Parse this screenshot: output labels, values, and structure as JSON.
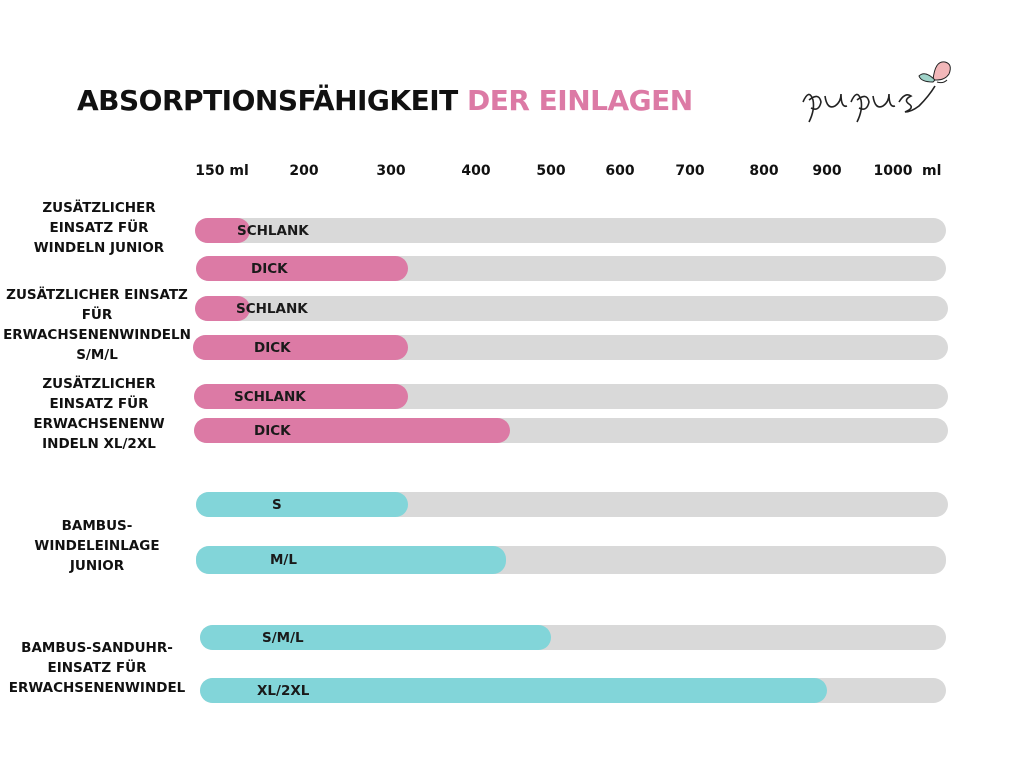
{
  "colors": {
    "accent_pink": "#dc7aa5",
    "accent_teal": "#82d5d9",
    "track_grey": "#d9d9d9",
    "text": "#111111"
  },
  "header": {
    "title_main": "ABSORPTIONSFÄHIGKEIT",
    "title_accent": "DER EINLAGEN",
    "logo_text": "pupus"
  },
  "chart_data": {
    "type": "bar",
    "orientation": "horizontal",
    "title": "ABSORPTIONSFÄHIGKEIT DER EINLAGEN",
    "xlabel": "ml",
    "unit": "ml",
    "xlim": [
      150,
      1000
    ],
    "grid": false,
    "x_ticks": [
      {
        "value": 150,
        "label": "150 ml"
      },
      {
        "value": 200,
        "label": "200"
      },
      {
        "value": 300,
        "label": "300"
      },
      {
        "value": 400,
        "label": "400"
      },
      {
        "value": 500,
        "label": "500"
      },
      {
        "value": 600,
        "label": "600"
      },
      {
        "value": 700,
        "label": "700"
      },
      {
        "value": 800,
        "label": "800"
      },
      {
        "value": 900,
        "label": "900"
      },
      {
        "value": 1000,
        "label": "1000"
      }
    ],
    "unit_label": "ml",
    "groups": [
      {
        "label": "ZUSÄTZLICHER EINSATZ FÜR WINDELN JUNIOR",
        "label_lines": [
          "ZUSÄTZLICHER",
          "EINSATZ FÜR",
          "WINDELN JUNIOR"
        ],
        "color": "pink",
        "bars": [
          {
            "label": "SCHLANK",
            "value": 165
          },
          {
            "label": "DICK",
            "value": 320
          }
        ]
      },
      {
        "label": "ZUSÄTZLICHER EINSATZ FÜR ERWACHSENENWINDELN S/M/L",
        "label_lines": [
          "ZUSÄTZLICHER EINSATZ",
          "FÜR",
          "ERWACHSENENWINDELN",
          "S/M/L"
        ],
        "color": "pink",
        "bars": [
          {
            "label": "SCHLANK",
            "value": 165
          },
          {
            "label": "DICK",
            "value": 320
          }
        ]
      },
      {
        "label": "ZUSÄTZLICHER EINSATZ FÜR ERWACHSENENWINDELN XL/2XL",
        "label_lines": [
          "ZUSÄTZLICHER",
          "EINSATZ FÜR",
          "ERWACHSENENW",
          "INDELN XL/2XL"
        ],
        "color": "pink",
        "bars": [
          {
            "label": "SCHLANK",
            "value": 320
          },
          {
            "label": "DICK",
            "value": 445
          }
        ]
      },
      {
        "label": "BAMBUS-WINDELEINLAGE JUNIOR",
        "label_lines": [
          "BAMBUS-",
          "WINDELEINLAGE",
          "JUNIOR"
        ],
        "color": "teal",
        "bars": [
          {
            "label": "S",
            "value": 320
          },
          {
            "label": "M/L",
            "value": 440
          }
        ]
      },
      {
        "label": "BAMBUS-SANDUHR-EINSATZ FÜR ERWACHSENENWINDEL",
        "label_lines": [
          "BAMBUS-SANDUHR-",
          "EINSATZ FÜR",
          "ERWACHSENENWINDEL"
        ],
        "color": "teal",
        "bars": [
          {
            "label": "S/M/L",
            "value": 500
          },
          {
            "label": "XL/2XL",
            "value": 900
          }
        ]
      }
    ]
  }
}
